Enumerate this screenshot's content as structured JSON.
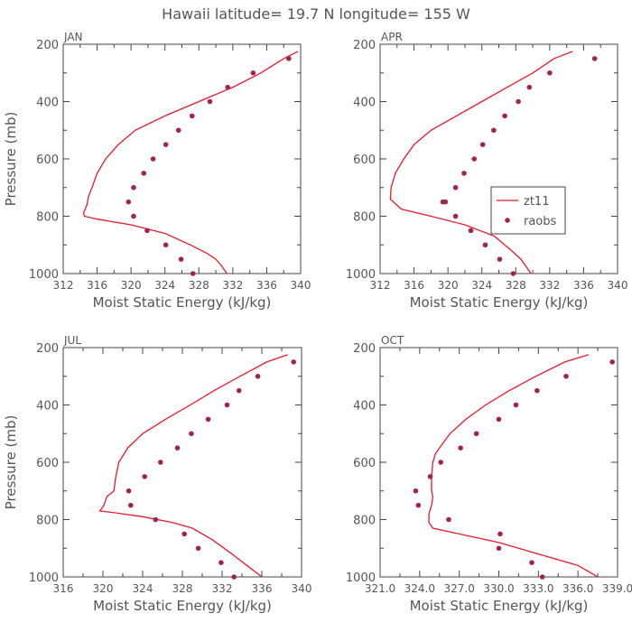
{
  "figure_title": "Hawaii  latitude= 19.7 N longitude= 155 W",
  "colors": {
    "model": "#e8192c",
    "obs": "#a3244a",
    "axis": "#444444",
    "text": "#555555"
  },
  "chart_data": [
    {
      "type": "line",
      "panel_label": "JAN",
      "xlabel": "Moist Static Energy (kJ/kg)",
      "ylabel": "Pressure (mb)",
      "xlim": [
        312,
        340
      ],
      "ylim": [
        1000,
        200
      ],
      "xticks": [
        312,
        316,
        320,
        324,
        328,
        332,
        336,
        340
      ],
      "xtick_labels": [
        "312",
        "316",
        "320",
        "324",
        "328",
        "332",
        "336",
        "340"
      ],
      "yticks": [
        200,
        400,
        600,
        800,
        1000
      ],
      "ytick_labels": [
        "200",
        "400",
        "600",
        "800",
        "1000"
      ],
      "legend": null,
      "series": [
        {
          "name": "zt11",
          "style": "line",
          "x": [
            339.7,
            338.0,
            335.3,
            332.0,
            328.0,
            324.0,
            320.5,
            318.5,
            317.0,
            316.0,
            315.4,
            315.0,
            314.8,
            314.4,
            314.5,
            316.0,
            320.0,
            324.0,
            327.0,
            329.0,
            330.0,
            330.6,
            331.3
          ],
          "y": [
            225,
            250,
            300,
            350,
            400,
            450,
            500,
            550,
            600,
            650,
            700,
            730,
            760,
            790,
            800,
            810,
            830,
            860,
            900,
            930,
            950,
            970,
            1000
          ]
        },
        {
          "name": "raobs",
          "style": "points",
          "x": [
            338.6,
            334.4,
            331.4,
            329.3,
            327.2,
            325.6,
            324.1,
            322.6,
            321.5,
            320.3,
            319.7,
            320.3,
            321.9,
            324.1,
            325.9,
            327.3
          ],
          "y": [
            250,
            300,
            350,
            400,
            450,
            500,
            550,
            600,
            650,
            700,
            750,
            800,
            850,
            900,
            950,
            1000
          ]
        }
      ]
    },
    {
      "type": "line",
      "panel_label": "APR",
      "xlabel": "Moist Static Energy (kJ/kg)",
      "ylabel": "",
      "xlim": [
        312,
        340
      ],
      "ylim": [
        1000,
        200
      ],
      "xticks": [
        312,
        316,
        320,
        324,
        328,
        332,
        336,
        340
      ],
      "xtick_labels": [
        "312",
        "316",
        "320",
        "324",
        "328",
        "332",
        "336",
        "340"
      ],
      "yticks": [
        200,
        400,
        600,
        800,
        1000
      ],
      "ytick_labels": [
        "200",
        "400",
        "600",
        "800",
        "1000"
      ],
      "legend": {
        "placement": "center-right",
        "entries": [
          "zt11",
          "raobs"
        ]
      },
      "series": [
        {
          "name": "zt11",
          "style": "line",
          "x": [
            334.7,
            332.5,
            330.0,
            327.0,
            324.0,
            321.0,
            318.0,
            316.0,
            314.8,
            313.8,
            313.3,
            313.2,
            314.5,
            318.0,
            322.0,
            325.5,
            327.5,
            328.6,
            329.8
          ],
          "y": [
            225,
            250,
            300,
            350,
            400,
            450,
            500,
            550,
            600,
            650,
            700,
            740,
            775,
            800,
            830,
            870,
            920,
            950,
            1000
          ]
        },
        {
          "name": "raobs",
          "style": "points",
          "x": [
            337.3,
            332.0,
            329.6,
            328.3,
            326.7,
            325.4,
            324.1,
            323.1,
            321.9,
            320.9,
            319.7,
            319.4,
            320.9,
            322.7,
            324.4,
            326.1,
            327.7
          ],
          "y": [
            250,
            300,
            350,
            400,
            450,
            500,
            550,
            600,
            650,
            700,
            750,
            750,
            800,
            850,
            900,
            950,
            1000
          ]
        }
      ]
    },
    {
      "type": "line",
      "panel_label": "JUL",
      "xlabel": "Moist Static Energy (kJ/kg)",
      "ylabel": "Pressure (mb)",
      "xlim": [
        316,
        340
      ],
      "ylim": [
        1000,
        200
      ],
      "xticks": [
        316,
        320,
        324,
        328,
        332,
        336,
        340
      ],
      "xtick_labels": [
        "316",
        "320",
        "324",
        "328",
        "332",
        "336",
        "340"
      ],
      "yticks": [
        200,
        400,
        600,
        800,
        1000
      ],
      "ytick_labels": [
        "200",
        "400",
        "600",
        "800",
        "1000"
      ],
      "legend": null,
      "series": [
        {
          "name": "zt11",
          "style": "line",
          "x": [
            338.6,
            336.5,
            333.8,
            331.2,
            328.8,
            326.3,
            324.0,
            322.5,
            321.6,
            321.3,
            321.1,
            320.4,
            320.1,
            319.7,
            321.0,
            324.0,
            327.0,
            329.0,
            331.0,
            333.0,
            334.5,
            336.0
          ],
          "y": [
            225,
            250,
            300,
            350,
            400,
            450,
            500,
            550,
            600,
            650,
            700,
            720,
            750,
            770,
            775,
            790,
            810,
            830,
            870,
            920,
            960,
            1000
          ]
        },
        {
          "name": "raobs",
          "style": "points",
          "x": [
            339.2,
            335.6,
            333.7,
            332.5,
            330.6,
            328.9,
            327.5,
            325.8,
            324.2,
            322.6,
            322.8,
            325.3,
            328.2,
            329.6,
            331.9,
            333.2
          ],
          "y": [
            250,
            300,
            350,
            400,
            450,
            500,
            550,
            600,
            650,
            700,
            750,
            800,
            850,
            900,
            950,
            1000
          ]
        }
      ]
    },
    {
      "type": "line",
      "panel_label": "OCT",
      "xlabel": "Moist Static Energy (kJ/kg)",
      "ylabel": "",
      "xlim": [
        321,
        339
      ],
      "ylim": [
        1000,
        200
      ],
      "xticks": [
        321,
        324,
        327,
        330,
        333,
        336,
        339
      ],
      "xtick_labels": [
        "321.0",
        "324.0",
        "327.0",
        "330.0",
        "333.0",
        "336.0",
        "339.0"
      ],
      "yticks": [
        200,
        400,
        600,
        800,
        1000
      ],
      "ytick_labels": [
        "200",
        "400",
        "600",
        "800",
        "1000"
      ],
      "legend": null,
      "series": [
        {
          "name": "zt11",
          "style": "line",
          "x": [
            336.8,
            335.0,
            332.8,
            330.8,
            329.0,
            327.5,
            326.3,
            325.5,
            325.2,
            325.0,
            324.9,
            324.9,
            325.0,
            324.9,
            324.7,
            324.7,
            325.0,
            327.0,
            330.0,
            333.0,
            336.0,
            337.5
          ],
          "y": [
            225,
            250,
            300,
            350,
            400,
            450,
            500,
            550,
            570,
            600,
            650,
            700,
            720,
            750,
            780,
            810,
            830,
            850,
            880,
            920,
            960,
            1000
          ]
        },
        {
          "name": "raobs",
          "style": "points",
          "x": [
            338.6,
            335.1,
            332.9,
            331.3,
            330.0,
            328.3,
            327.1,
            325.6,
            324.8,
            323.7,
            323.9,
            326.2,
            330.1,
            330.0,
            332.5,
            333.3
          ],
          "y": [
            250,
            300,
            350,
            400,
            450,
            500,
            550,
            600,
            650,
            700,
            750,
            800,
            850,
            900,
            950,
            1000
          ]
        }
      ]
    }
  ]
}
